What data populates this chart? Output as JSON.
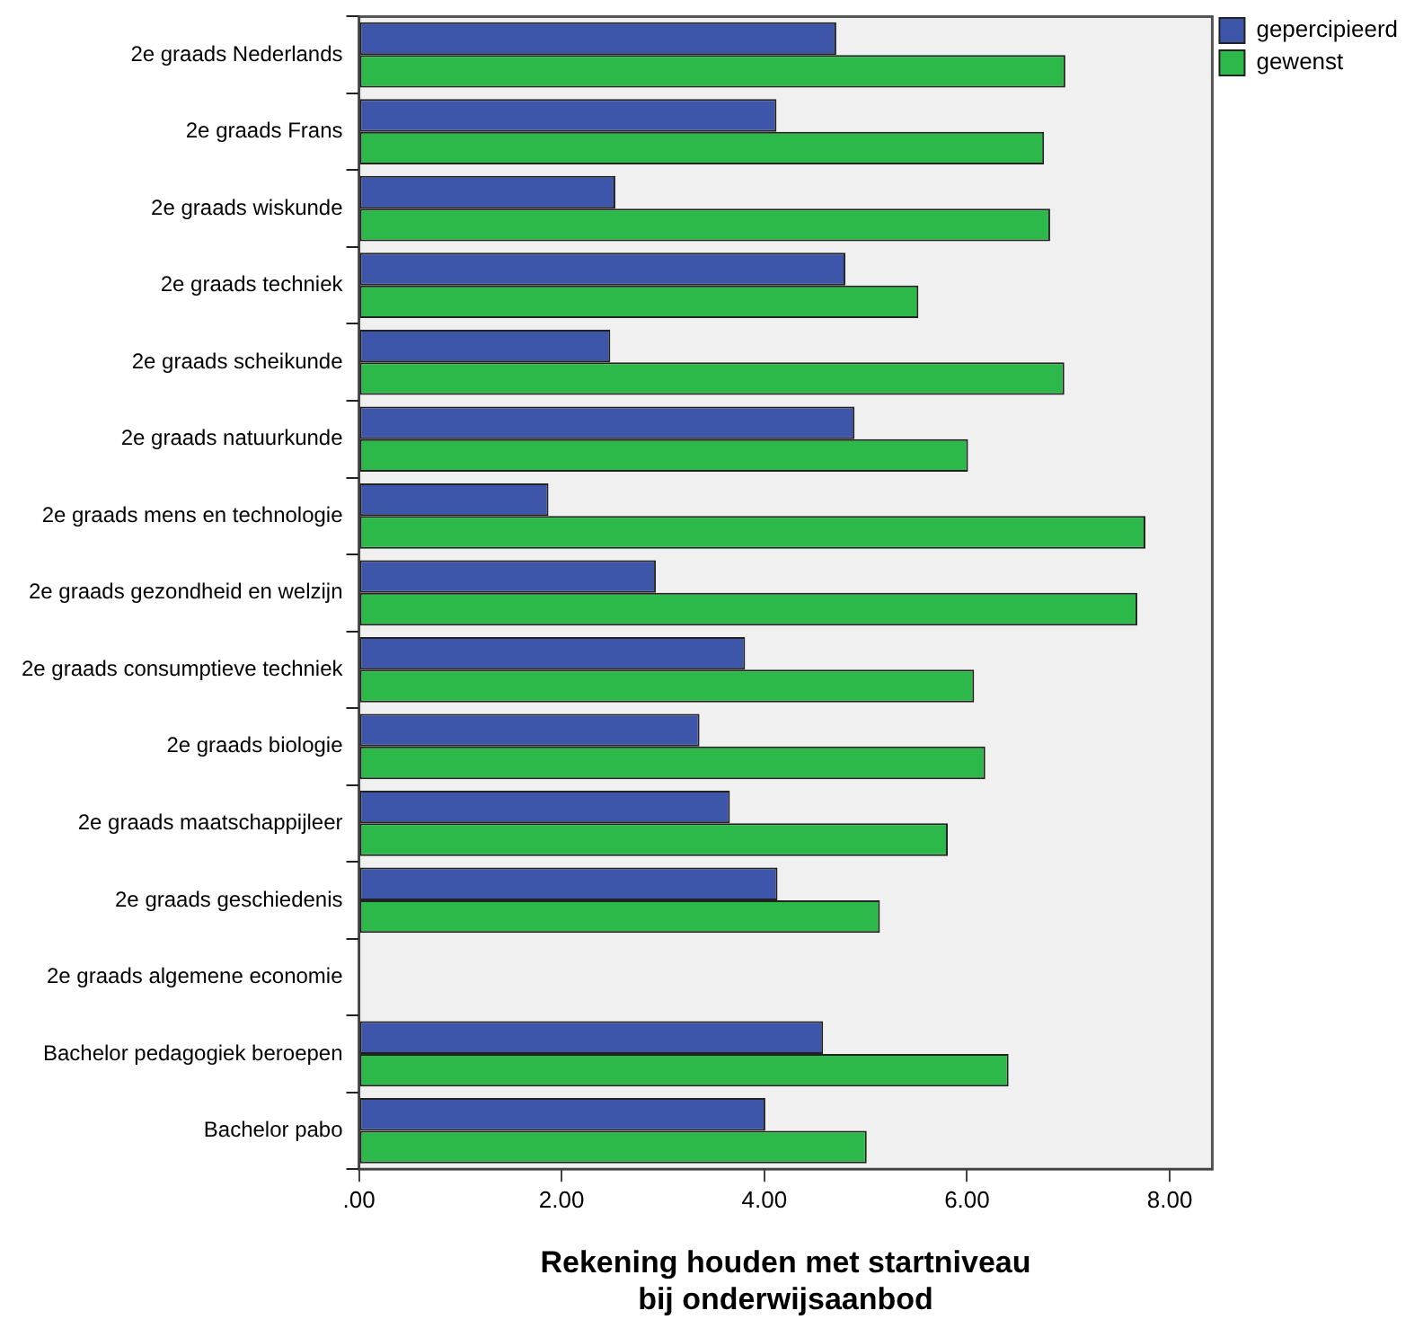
{
  "chart_data": {
    "type": "bar",
    "orientation": "horizontal",
    "xlabel": "Rekening houden met startniveau bij onderwijsaanbod",
    "categories": [
      "2e graads Nederlands",
      "2e graads Frans",
      "2e graads wiskunde",
      "2e graads techniek",
      "2e graads scheikunde",
      "2e graads natuurkunde",
      "2e graads mens en technologie",
      "2e graads gezondheid en welzijn",
      "2e graads consumptieve techniek",
      "2e graads biologie",
      "2e graads maatschappijleer",
      "2e graads geschiedenis",
      "2e graads algemene economie",
      "Bachelor pedagogiek beroepen",
      "Bachelor pabo"
    ],
    "series": [
      {
        "name": "gepercipieerd",
        "color": "#3e56a9",
        "values": [
          4.71,
          4.12,
          2.53,
          4.8,
          2.48,
          4.89,
          1.87,
          2.93,
          3.81,
          3.36,
          3.66,
          4.13,
          null,
          4.58,
          4.01
        ]
      },
      {
        "name": "gewenst",
        "color": "#2db84a",
        "values": [
          6.97,
          6.76,
          6.82,
          5.52,
          6.96,
          6.01,
          7.76,
          7.68,
          6.07,
          6.18,
          5.81,
          5.14,
          null,
          6.41,
          5.01
        ]
      }
    ],
    "xlim": [
      0,
      8.42
    ],
    "xticks": [
      {
        "value": 0,
        "label": ".00"
      },
      {
        "value": 2,
        "label": "2.00"
      },
      {
        "value": 4,
        "label": "4.00"
      },
      {
        "value": 6,
        "label": "6.00"
      },
      {
        "value": 8,
        "label": "8.00"
      }
    ],
    "grid": false,
    "legend": "top right"
  }
}
